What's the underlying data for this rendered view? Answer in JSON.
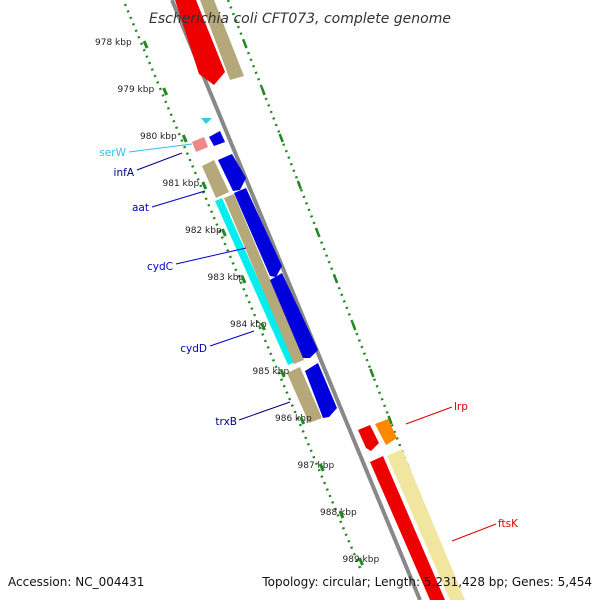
{
  "title": "Escherichia coli CFT073, complete genome",
  "footer": {
    "accession": "Accession: NC_004431",
    "topology": "Topology: circular; Length: 5,231,428 bp; Genes: 5,454"
  },
  "ticks": [
    "978 kbp",
    "979 kbp",
    "980 kbp",
    "981 kbp",
    "982 kbp",
    "983 kbp",
    "984 kbp",
    "985 kbp",
    "986 kbp",
    "987 kbp",
    "988 kbp",
    "989 kbp"
  ],
  "genes": [
    {
      "label": "serW",
      "color": "#33bbee"
    },
    {
      "label": "infA",
      "color": "#000080"
    },
    {
      "label": "aat",
      "color": "#0000cc"
    },
    {
      "label": "cydC",
      "color": "#0000cc"
    },
    {
      "label": "cydD",
      "color": "#0000cc"
    },
    {
      "label": "trxB",
      "color": "#000080"
    },
    {
      "label": "lrp",
      "color": "#dd0000"
    },
    {
      "label": "ftsK",
      "color": "#dd0000"
    }
  ],
  "colors": {
    "backbone": "#888888",
    "cds_forward": "#0000dd",
    "cds_reverse": "#ee0000",
    "orf": "#b5a87a",
    "orf_light": "#f0e6a0",
    "trna": "#33ccdd",
    "rrna": "#ee8888",
    "cyan_region": "#00eeee",
    "orange": "#ff8800",
    "tick_green": "#228822"
  }
}
